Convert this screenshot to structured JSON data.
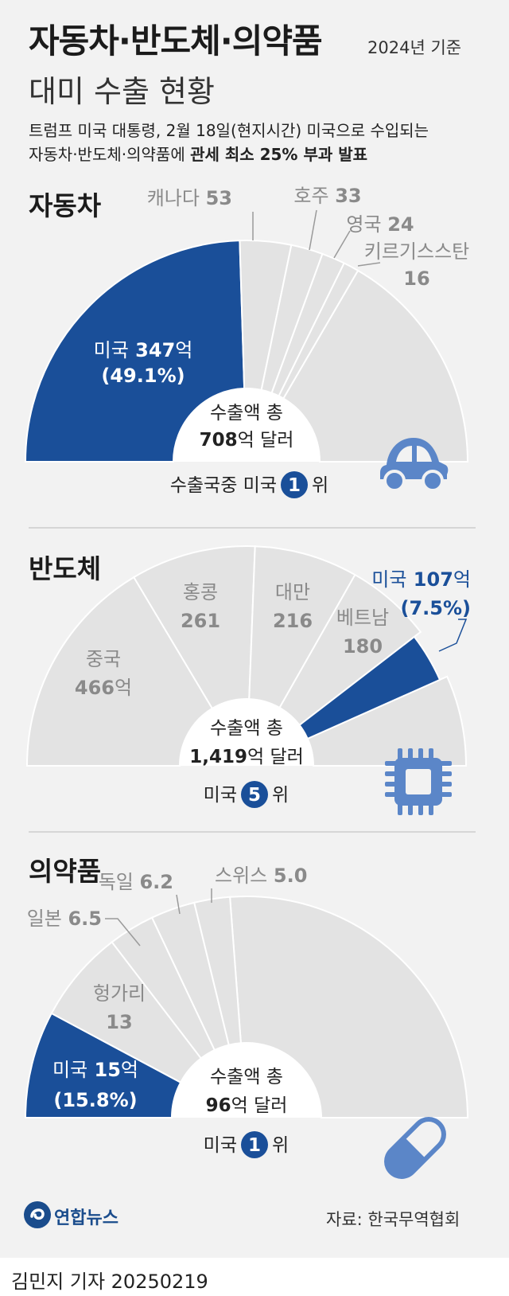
{
  "header": {
    "title": "자동차·반도체·의약품",
    "subtitle": "대미 수출 현황",
    "basis": "2024년 기준",
    "lead_line1": "트럼프 미국 대통령, 2월 18일(현지시간) 미국으로 수입되는",
    "lead_line2_plain": "자동차·반도체·의약품에 ",
    "lead_line2_bold": "관세 최소 25% 부과 발표"
  },
  "colors": {
    "us": "#1a4f99",
    "other": "#e3e3e3",
    "bg": "#f2f2f2",
    "label_gray": "#8a8a8a",
    "icon": "#5b86c8"
  },
  "icons": {
    "car": "car-icon",
    "chip": "chip-icon",
    "pill": "pill-icon"
  },
  "chart_data": [
    {
      "type": "pie",
      "title": "자동차",
      "unit": "억 달러",
      "total": 708,
      "total_label_line1": "수출액 총",
      "total_value": "708",
      "total_unit": "억 달러",
      "rank_prefix": "수출국중 미국",
      "rank": "1",
      "rank_suffix": "위",
      "slices": [
        {
          "name": "미국",
          "value": 347,
          "share": "49.1%",
          "value_text": "347",
          "unit": "억",
          "share_text": "(49.1%)",
          "highlight": true
        },
        {
          "name": "캐나다",
          "value": 53,
          "value_text": "53"
        },
        {
          "name": "호주",
          "value": 33,
          "value_text": "33"
        },
        {
          "name": "영국",
          "value": 24,
          "value_text": "24"
        },
        {
          "name": "키르기스스탄",
          "value": 16,
          "value_text": "16"
        }
      ]
    },
    {
      "type": "pie",
      "title": "반도체",
      "unit": "억 달러",
      "total": 1419,
      "total_label_line1": "수출액 총",
      "total_value": "1,419",
      "total_unit": "억 달러",
      "rank_prefix": "미국",
      "rank": "5",
      "rank_suffix": "위",
      "slices": [
        {
          "name": "중국",
          "value": 466,
          "value_text": "466",
          "unit": "억"
        },
        {
          "name": "홍콩",
          "value": 261,
          "value_text": "261"
        },
        {
          "name": "대만",
          "value": 216,
          "value_text": "216"
        },
        {
          "name": "베트남",
          "value": 180,
          "value_text": "180"
        },
        {
          "name": "미국",
          "value": 107,
          "share": "7.5%",
          "value_text": "107",
          "unit": "억",
          "share_text": "(7.5%)",
          "highlight": true
        }
      ]
    },
    {
      "type": "pie",
      "title": "의약품",
      "unit": "억 달러",
      "total": 96,
      "total_label_line1": "수출액 총",
      "total_value": "96",
      "total_unit": "억 달러",
      "rank_prefix": "미국",
      "rank": "1",
      "rank_suffix": "위",
      "slices": [
        {
          "name": "미국",
          "value": 15,
          "share": "15.8%",
          "value_text": "15",
          "unit": "억",
          "share_text": "(15.8%)",
          "highlight": true
        },
        {
          "name": "헝가리",
          "value": 13,
          "value_text": "13"
        },
        {
          "name": "일본",
          "value": 6.5,
          "value_text": "6.5"
        },
        {
          "name": "독일",
          "value": 6.2,
          "value_text": "6.2"
        },
        {
          "name": "스위스",
          "value": 5.0,
          "value_text": "5.0"
        }
      ]
    }
  ],
  "footer": {
    "logo_text": "연합뉴스",
    "source": "자료: 한국무역협회",
    "byline": "김민지 기자  20250219"
  }
}
